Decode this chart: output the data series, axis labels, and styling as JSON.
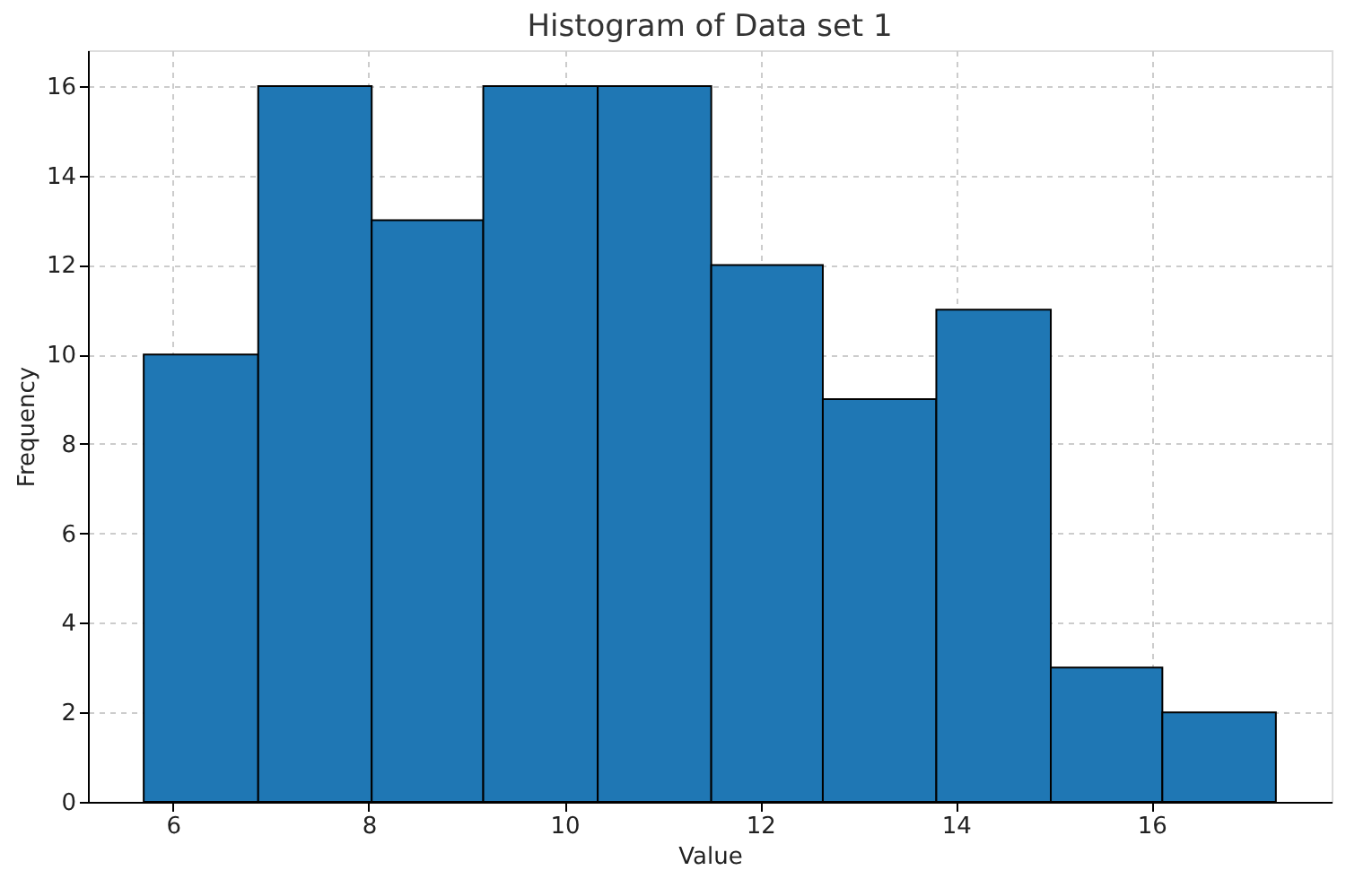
{
  "chart_data": {
    "type": "histogram",
    "title": "Histogram of Data set 1",
    "xlabel": "Value",
    "ylabel": "Frequency",
    "bins": [
      5.7,
      6.87,
      8.03,
      9.17,
      10.34,
      11.5,
      12.64,
      13.8,
      14.97,
      16.11,
      17.27
    ],
    "values": [
      10,
      16,
      13,
      16,
      16,
      12,
      9,
      11,
      3,
      2
    ],
    "color": "#1f77b4",
    "xlim": [
      5.13,
      17.84
    ],
    "xticks": [
      6,
      8,
      10,
      12,
      14,
      16
    ],
    "ylim": [
      0,
      16.8
    ],
    "yticks": [
      0,
      2,
      4,
      6,
      8,
      10,
      12,
      14,
      16
    ],
    "grid": true
  }
}
